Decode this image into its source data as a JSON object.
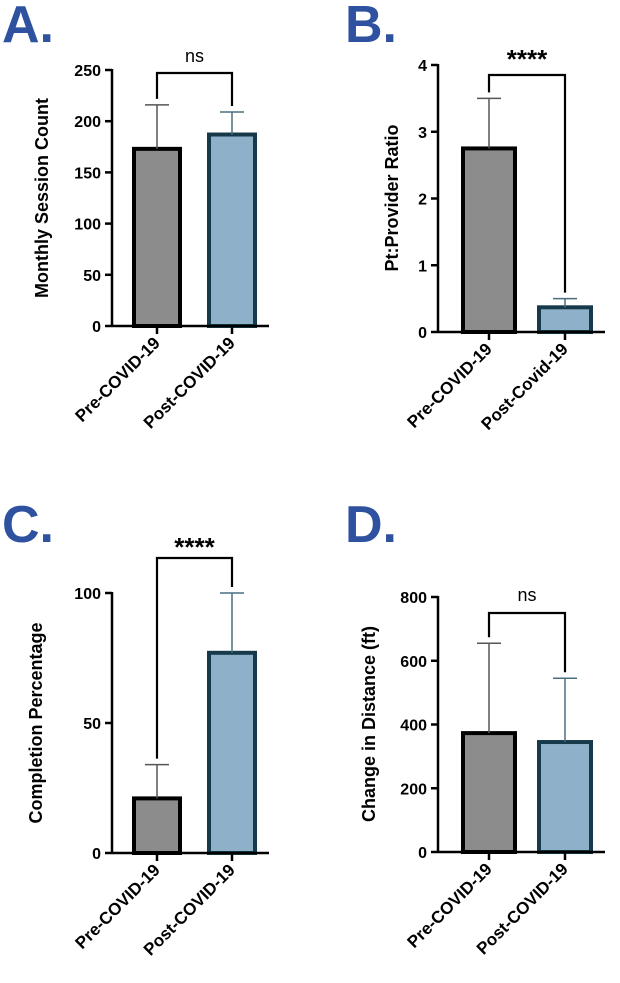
{
  "colors": {
    "label": "#2f52a0",
    "pre_fill": "#8c8c8c",
    "post_fill": "#8fb0c9",
    "pre_stroke": "#000000",
    "post_stroke": "#163a4a"
  },
  "chart_data": [
    {
      "panel": "A.",
      "type": "bar",
      "title": "",
      "xlabel": "",
      "ylabel": "Monthly Session Count",
      "categories": [
        "Pre-COVID-19",
        "Post-COVID-19"
      ],
      "values": [
        173,
        187
      ],
      "errors": [
        43,
        22
      ],
      "ylim": [
        0,
        250
      ],
      "yticks": [
        0,
        50,
        100,
        150,
        200,
        250
      ],
      "significance": "ns"
    },
    {
      "panel": "B.",
      "type": "bar",
      "title": "",
      "xlabel": "",
      "ylabel": "Pt:Provider Ratio",
      "categories": [
        "Pre-COVID-19",
        "Post-Covid-19"
      ],
      "values": [
        2.75,
        0.37
      ],
      "errors": [
        0.75,
        0.13
      ],
      "ylim": [
        0,
        4
      ],
      "yticks": [
        0,
        1,
        2,
        3,
        4
      ],
      "significance": "****"
    },
    {
      "panel": "C.",
      "type": "bar",
      "title": "",
      "xlabel": "",
      "ylabel": "Completion Percentage",
      "categories": [
        "Pre-COVID-19",
        "Post-COVID-19"
      ],
      "values": [
        21,
        77
      ],
      "errors": [
        13,
        23
      ],
      "ylim": [
        0,
        100
      ],
      "yticks": [
        0,
        50,
        100
      ],
      "significance": "****"
    },
    {
      "panel": "D.",
      "type": "bar",
      "title": "",
      "xlabel": "",
      "ylabel": "Change in Distance (ft)",
      "categories": [
        "Pre-COVID-19",
        "Post-COVID-19"
      ],
      "values": [
        373,
        345
      ],
      "errors": [
        282,
        200
      ],
      "ylim": [
        0,
        800
      ],
      "yticks": [
        0,
        200,
        400,
        600,
        800
      ],
      "significance": "ns"
    }
  ]
}
